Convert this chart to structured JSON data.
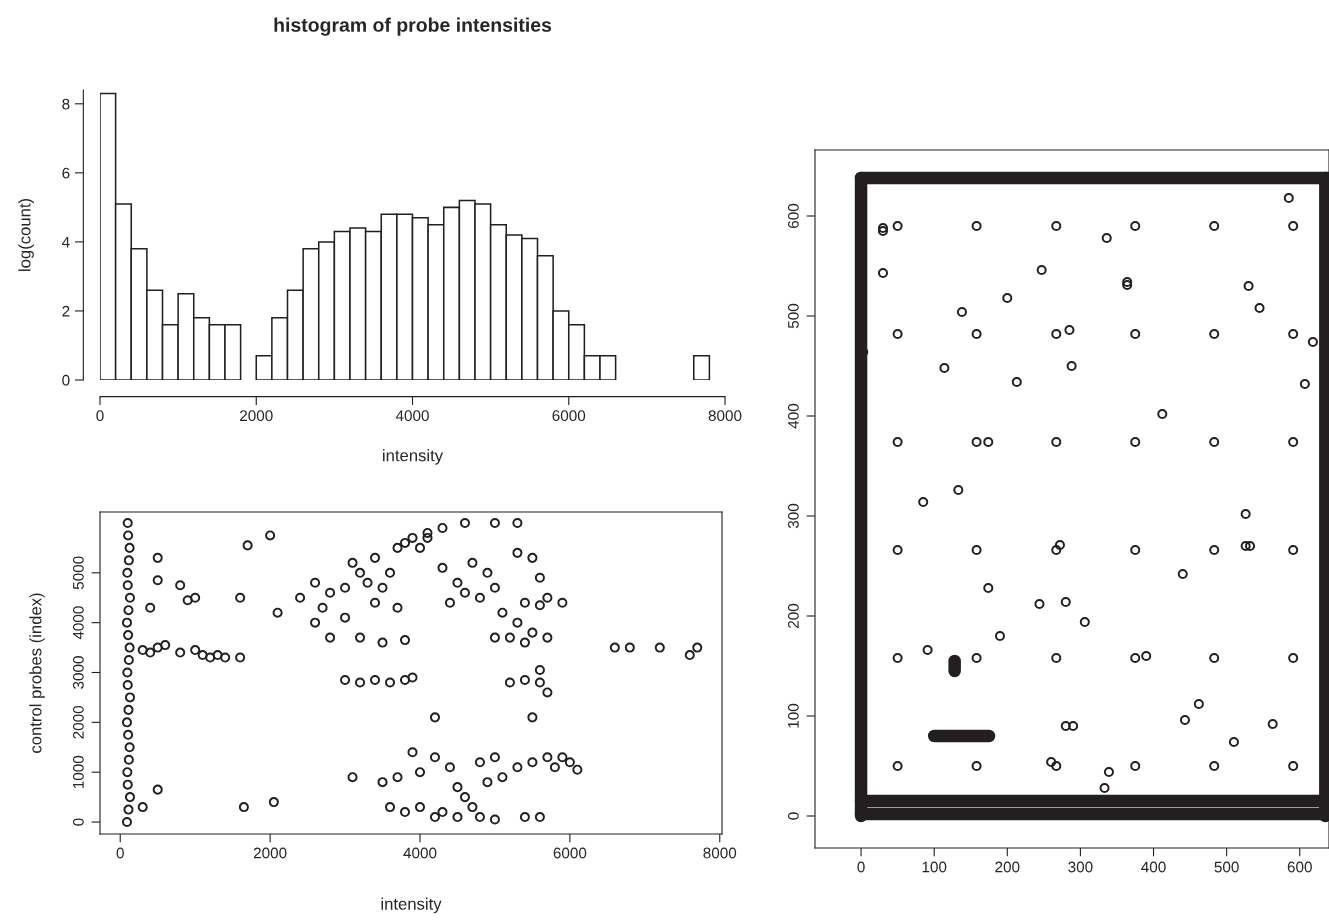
{
  "chart_data": [
    {
      "type": "histogram",
      "title": "histogram of probe intensities",
      "xlabel": "intensity",
      "ylabel": "log(count)",
      "bins": [
        0,
        200,
        400,
        600,
        800,
        1000,
        1200,
        1400,
        1600,
        1800,
        2000,
        2200,
        2400,
        2600,
        2800,
        3000,
        3200,
        3400,
        3600,
        3800,
        4000,
        4200,
        4400,
        4600,
        4800,
        5000,
        5200,
        5400,
        5600,
        5800,
        6000,
        6200,
        6400,
        6600,
        6800,
        7000,
        7200,
        7400,
        7600,
        7800
      ],
      "values": [
        8.3,
        5.1,
        3.8,
        2.6,
        1.6,
        2.5,
        1.8,
        1.6,
        1.6,
        0,
        0.7,
        1.8,
        2.6,
        3.8,
        4.0,
        4.3,
        4.4,
        4.3,
        4.8,
        4.8,
        4.7,
        4.5,
        5.0,
        5.2,
        5.1,
        4.5,
        4.2,
        4.1,
        3.6,
        2.0,
        1.6,
        0.7,
        0.7,
        0,
        0,
        0,
        0,
        0,
        0.7
      ],
      "color": "#ffffff",
      "xlim": [
        0,
        8000
      ],
      "ylim": [
        0,
        8.4
      ],
      "xticks": [
        0,
        2000,
        4000,
        6000,
        8000
      ],
      "yticks": [
        0,
        2,
        4,
        6,
        8
      ],
      "grid": false
    },
    {
      "type": "scatter",
      "xlabel": "intensity",
      "ylabel": "control probes (index)",
      "marker": "circle",
      "grid": false,
      "xlim": [
        -270,
        8030
      ],
      "ylim": [
        -240,
        6220
      ],
      "xticks": [
        0,
        2000,
        4000,
        6000,
        8000
      ],
      "yticks": [
        0,
        1000,
        2000,
        3000,
        4000,
        5000
      ],
      "series": [
        {
          "color": "#231f20",
          "x": [
            90,
            110,
            130,
            100,
            95,
            115,
            125,
            105,
            90,
            110,
            130,
            100,
            95,
            115,
            125,
            105,
            90,
            110,
            130,
            100,
            95,
            115,
            125,
            105,
            100,
            300,
            400,
            500,
            600,
            800,
            1000,
            1100,
            1200,
            1300,
            1400,
            1600,
            1700,
            2000,
            1600,
            2100,
            1650,
            2050,
            800,
            1000,
            900,
            500,
            500,
            400,
            300,
            500,
            2400,
            2600,
            2700,
            2800,
            3000,
            3200,
            3300,
            3400,
            3500,
            3600,
            3700,
            3000,
            2600,
            2800,
            3200,
            3500,
            3800,
            3100,
            3400,
            3700,
            3900,
            4100,
            4300,
            4600,
            5000,
            5300,
            3800,
            4000,
            4100,
            4300,
            4500,
            4600,
            4800,
            4900,
            5000,
            4700,
            4400,
            5100,
            5300,
            5500,
            5700,
            5400,
            5200,
            5000,
            5600,
            5400,
            5900,
            5300,
            5500,
            5600,
            5700,
            3000,
            3200,
            3400,
            3600,
            3800,
            3900,
            5200,
            5400,
            5600,
            5700,
            5600,
            5500,
            4200,
            6600,
            6800,
            7200,
            7600,
            7700,
            5900,
            6000,
            6100,
            5800,
            3500,
            3700,
            3900,
            4000,
            4200,
            4400,
            4500,
            4600,
            4700,
            4800,
            4900,
            5000,
            5100,
            5300,
            5500,
            5700,
            3600,
            3800,
            4000,
            4300,
            4500,
            4800,
            5000,
            5400,
            5600,
            3100,
            4200
          ],
          "values": [
            0,
            250,
            500,
            750,
            1000,
            1250,
            1500,
            1750,
            2000,
            2250,
            2500,
            2750,
            3000,
            3250,
            3500,
            3750,
            4000,
            4250,
            4500,
            4750,
            5000,
            5250,
            5500,
            5750,
            6000,
            3450,
            3400,
            3500,
            3550,
            3400,
            3450,
            3350,
            3300,
            3350,
            3300,
            3300,
            5550,
            5750,
            4500,
            4200,
            300,
            400,
            4750,
            4500,
            4450,
            5300,
            4850,
            4300,
            300,
            650,
            4500,
            4800,
            4300,
            4600,
            4700,
            5000,
            4800,
            4400,
            4700,
            5000,
            4300,
            4100,
            4000,
            3700,
            3700,
            3600,
            3650,
            5200,
            5300,
            5500,
            5700,
            5800,
            5900,
            6000,
            6000,
            6000,
            5600,
            5500,
            5700,
            5100,
            4800,
            4600,
            4500,
            5000,
            4700,
            5200,
            4400,
            4200,
            4000,
            3800,
            3700,
            3600,
            3700,
            3700,
            4350,
            4400,
            4400,
            5400,
            5300,
            4900,
            4500,
            2850,
            2800,
            2850,
            2800,
            2850,
            2900,
            2800,
            2850,
            2800,
            2600,
            3050,
            2100,
            2100,
            3500,
            3500,
            3500,
            3350,
            3500,
            1300,
            1200,
            1050,
            1100,
            800,
            900,
            1400,
            1000,
            1300,
            1100,
            700,
            500,
            300,
            1200,
            800,
            1300,
            900,
            1100,
            1200,
            1300,
            300,
            200,
            300,
            200,
            100,
            100,
            50,
            100,
            100,
            900,
            100
          ]
        }
      ]
    },
    {
      "type": "scatter",
      "grid": false,
      "tick_labels": "xy",
      "xlim": [
        -63,
        640
      ],
      "ylim": [
        -32,
        666
      ],
      "xticks": [
        0,
        100,
        200,
        300,
        400,
        500,
        600
      ],
      "yticks": [
        0,
        100,
        200,
        300,
        400,
        500,
        600
      ],
      "series": [
        {
          "type": "line",
          "color": "#231f20",
          "x": [
            0,
            640
          ],
          "values": [
            638,
            638
          ]
        },
        {
          "type": "line",
          "color": "#231f20",
          "x": [
            0,
            0
          ],
          "values": [
            0,
            638
          ]
        },
        {
          "type": "line",
          "color": "#231f20",
          "x": [
            635,
            635
          ],
          "values": [
            0,
            638
          ]
        },
        {
          "type": "line",
          "color": "#231f20",
          "x": [
            0,
            640
          ],
          "values": [
            2,
            2
          ]
        },
        {
          "type": "line",
          "color": "#231f20",
          "x": [
            0,
            640
          ],
          "values": [
            15,
            15
          ]
        },
        {
          "type": "line",
          "color": "#231f20",
          "x": [
            100,
            175
          ],
          "values": [
            80,
            80
          ]
        },
        {
          "type": "line",
          "color": "#231f20",
          "x": [
            128,
            128
          ],
          "values": [
            145,
            155
          ]
        },
        {
          "type": "scatter",
          "color": "#231f20",
          "marker": "circle",
          "x": [
            30,
            30,
            30,
            50,
            158,
            267,
            375,
            483,
            591,
            585,
            336,
            247,
            364,
            364,
            530,
            545,
            200,
            138,
            50,
            158,
            267,
            285,
            375,
            483,
            591,
            618,
            3,
            114,
            288,
            213,
            607,
            412,
            50,
            158,
            174,
            267,
            375,
            483,
            591,
            85,
            133,
            526,
            50,
            158,
            267,
            272,
            375,
            483,
            526,
            532,
            591,
            440,
            174,
            244,
            280,
            306,
            190,
            91,
            50,
            158,
            267,
            375,
            390,
            483,
            591,
            443,
            462,
            563,
            510,
            280,
            290,
            50,
            158,
            260,
            267,
            375,
            483,
            591,
            339,
            333
          ],
          "values": [
            588,
            585,
            543,
            590,
            590,
            590,
            590,
            590,
            590,
            618,
            578,
            546,
            534,
            531,
            530,
            508,
            518,
            504,
            482,
            482,
            482,
            486,
            482,
            482,
            482,
            474,
            464,
            448,
            450,
            434,
            432,
            402,
            374,
            374,
            374,
            374,
            374,
            374,
            374,
            314,
            326,
            302,
            266,
            266,
            266,
            271,
            266,
            266,
            270,
            270,
            266,
            242,
            228,
            212,
            214,
            194,
            180,
            166,
            158,
            158,
            158,
            158,
            160,
            158,
            158,
            96,
            112,
            92,
            74,
            90,
            90,
            50,
            50,
            54,
            50,
            50,
            50,
            50,
            44,
            28
          ]
        }
      ]
    }
  ]
}
